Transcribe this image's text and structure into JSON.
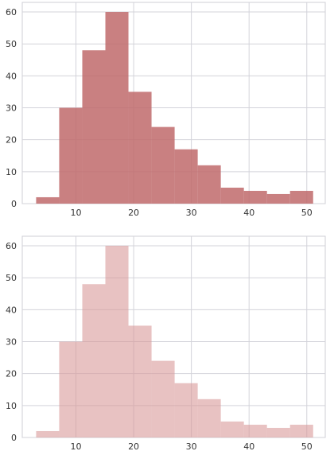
{
  "chart_data": [
    {
      "type": "bar",
      "kind": "histogram",
      "bins": [
        [
          3.1,
          7.1
        ],
        [
          7.1,
          11.1
        ],
        [
          11.1,
          15.1
        ],
        [
          15.1,
          19.1
        ],
        [
          19.1,
          23.1
        ],
        [
          23.1,
          27.1
        ],
        [
          27.1,
          31.1
        ],
        [
          31.1,
          35.1
        ],
        [
          35.1,
          39.1
        ],
        [
          39.1,
          43.1
        ],
        [
          43.1,
          47.1
        ],
        [
          47.1,
          51.1
        ]
      ],
      "values": [
        2,
        30,
        48,
        60,
        35,
        24,
        17,
        12,
        5,
        4,
        3,
        4
      ],
      "xlim": [
        0.7,
        53.2
      ],
      "ylim": [
        0,
        63
      ],
      "xticks": [
        10,
        20,
        30,
        40,
        50
      ],
      "yticks": [
        0,
        10,
        20,
        30,
        40,
        50,
        60
      ],
      "color": "#c06a6b",
      "opacity": 0.85,
      "grid": true
    },
    {
      "type": "bar",
      "kind": "histogram",
      "bins": [
        [
          3.1,
          7.1
        ],
        [
          7.1,
          11.1
        ],
        [
          11.1,
          15.1
        ],
        [
          15.1,
          19.1
        ],
        [
          19.1,
          23.1
        ],
        [
          23.1,
          27.1
        ],
        [
          27.1,
          31.1
        ],
        [
          31.1,
          35.1
        ],
        [
          35.1,
          39.1
        ],
        [
          39.1,
          43.1
        ],
        [
          43.1,
          47.1
        ],
        [
          47.1,
          51.1
        ]
      ],
      "values": [
        2,
        30,
        48,
        60,
        35,
        24,
        17,
        12,
        5,
        4,
        3,
        4
      ],
      "xlim": [
        0.7,
        53.2
      ],
      "ylim": [
        0,
        63
      ],
      "xticks": [
        10,
        20,
        30,
        40,
        50
      ],
      "yticks": [
        0,
        10,
        20,
        30,
        40,
        50,
        60
      ],
      "color": "#d99a9a",
      "opacity": 0.6,
      "grid": true
    }
  ]
}
